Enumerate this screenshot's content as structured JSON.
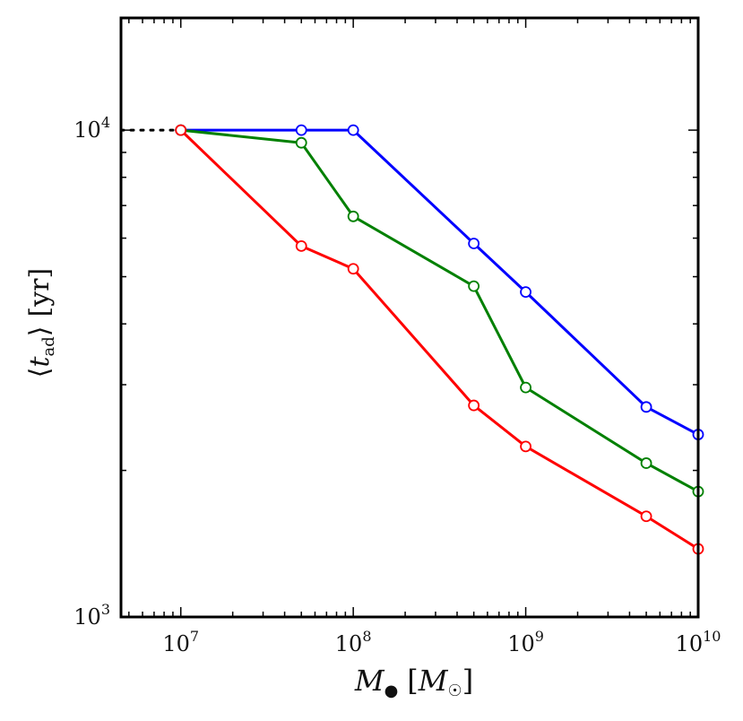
{
  "chart_data": {
    "type": "line",
    "title": "",
    "xlabel": {
      "symbol": "M",
      "subscript": "●",
      "unit_open": "[",
      "unit_symbol": "M",
      "unit_subscript": "☉",
      "unit_close": "]"
    },
    "ylabel": {
      "open": "⟨",
      "symbol": "t",
      "subscript": "ad",
      "close": "⟩",
      "unit": "[yr]"
    },
    "xscale": "log",
    "yscale": "log",
    "xlim": [
      4500000,
      10000000000
    ],
    "ylim": [
      1000,
      17000
    ],
    "x_ticks": [
      {
        "value": 10000000,
        "base": "10",
        "exp": "7"
      },
      {
        "value": 100000000,
        "base": "10",
        "exp": "8"
      },
      {
        "value": 1000000000,
        "base": "10",
        "exp": "9"
      },
      {
        "value": 10000000000,
        "base": "10",
        "exp": "10"
      }
    ],
    "y_ticks": [
      {
        "value": 1000,
        "base": "10",
        "exp": "3"
      },
      {
        "value": 10000,
        "base": "10",
        "exp": "4"
      }
    ],
    "x": [
      10000000,
      50000000,
      100000000,
      500000000,
      1000000000,
      5000000000,
      10000000000
    ],
    "series": [
      {
        "name": "blue",
        "color": "#0000ff",
        "values": [
          10000,
          10000,
          10000,
          5850,
          4650,
          2700,
          2370
        ]
      },
      {
        "name": "green",
        "color": "#008000",
        "values": [
          10000,
          9420,
          6650,
          4780,
          2960,
          2070,
          1810
        ]
      },
      {
        "name": "red",
        "color": "#ff0000",
        "values": [
          10000,
          5780,
          5190,
          2720,
          2240,
          1610,
          1380
        ]
      }
    ],
    "extension": {
      "style": "dotted",
      "color": "#000000",
      "x": [
        4500000,
        10000000
      ],
      "y": 10000
    },
    "grid": false,
    "legend": "none",
    "marker": "open-circle"
  }
}
